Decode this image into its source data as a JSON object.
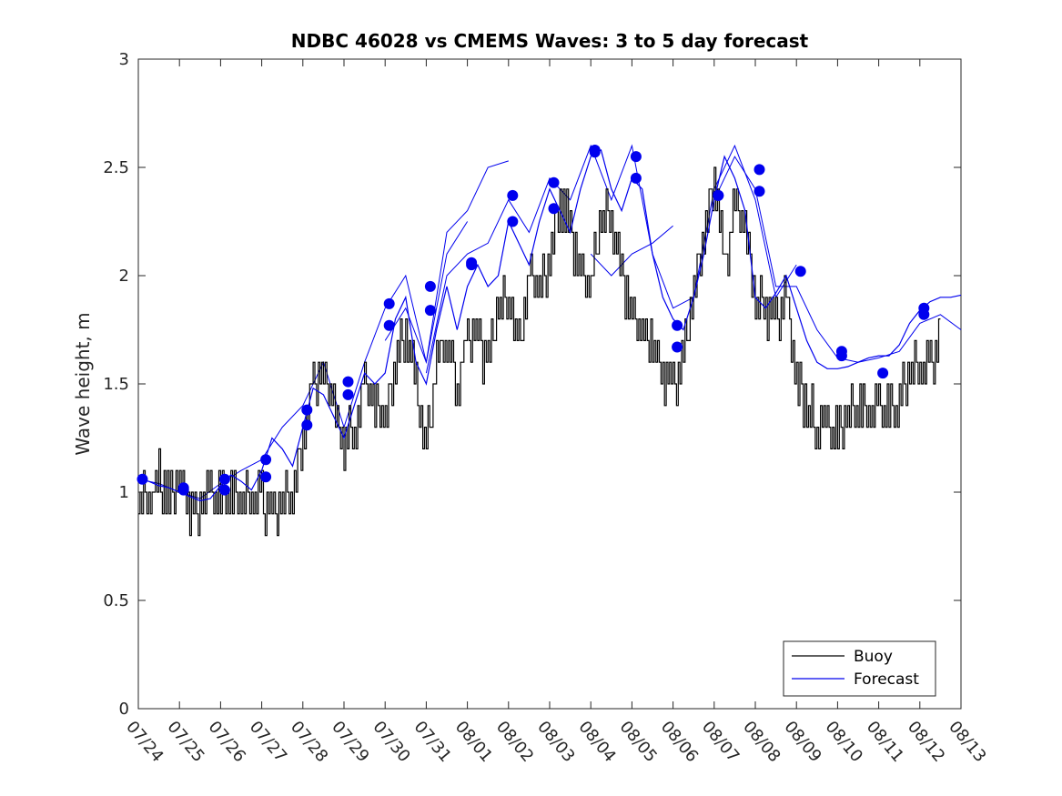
{
  "chart_data": {
    "type": "line",
    "title": "NDBC 46028 vs CMEMS Waves: 3 to 5 day forecast",
    "xlabel": "",
    "ylabel": "Wave height, m",
    "xlim": [
      "07/24",
      "08/13"
    ],
    "ylim": [
      0,
      3
    ],
    "yticks": [
      "0",
      "0.5",
      "1",
      "1.5",
      "2",
      "2.5",
      "3"
    ],
    "xticks": [
      "07/24",
      "07/25",
      "07/26",
      "07/27",
      "07/28",
      "07/29",
      "07/30",
      "07/31",
      "08/01",
      "08/02",
      "08/03",
      "08/04",
      "08/05",
      "08/06",
      "08/07",
      "08/08",
      "08/09",
      "08/10",
      "08/11",
      "08/12",
      "08/13"
    ],
    "grid": false,
    "legend_position": "bottom-right",
    "colors": {
      "buoy": "#000000",
      "forecast": "#0000ee"
    },
    "series": [
      {
        "name": "Buoy",
        "x": [
          0.0,
          0.25,
          0.5,
          0.75,
          1.0,
          1.25,
          1.5,
          1.75,
          2.0,
          2.25,
          2.5,
          2.75,
          3.0,
          3.25,
          3.5,
          3.75,
          4.0,
          4.25,
          4.5,
          4.75,
          5.0,
          5.25,
          5.5,
          5.75,
          6.0,
          6.25,
          6.5,
          6.75,
          7.0,
          7.25,
          7.5,
          7.75,
          8.0,
          8.25,
          8.5,
          8.75,
          9.0,
          9.25,
          9.5,
          9.75,
          10.0,
          10.25,
          10.5,
          10.75,
          11.0,
          11.25,
          11.5,
          11.75,
          12.0,
          12.25,
          12.5,
          12.75,
          13.0,
          13.25,
          13.5,
          13.75,
          14.0,
          14.25,
          14.5,
          14.75,
          15.0,
          15.25,
          15.5,
          15.75,
          16.0,
          16.25,
          16.5,
          16.75,
          17.0,
          17.25,
          17.5,
          17.75,
          18.0,
          18.25,
          18.5,
          18.75,
          19.0,
          19.25,
          19.5
        ],
        "y": [
          1.0,
          0.95,
          1.05,
          0.95,
          1.05,
          0.9,
          0.95,
          1.0,
          0.95,
          1.0,
          0.95,
          0.95,
          0.95,
          0.9,
          0.95,
          0.95,
          1.3,
          1.5,
          1.55,
          1.4,
          1.2,
          1.3,
          1.5,
          1.4,
          1.3,
          1.6,
          1.75,
          1.45,
          1.2,
          1.6,
          1.7,
          1.5,
          1.7,
          1.7,
          1.6,
          1.85,
          1.9,
          1.65,
          2.0,
          1.95,
          2.1,
          2.35,
          2.2,
          2.0,
          1.95,
          2.3,
          2.25,
          2.0,
          1.8,
          1.75,
          1.7,
          1.55,
          1.45,
          1.6,
          1.9,
          2.2,
          2.45,
          2.0,
          2.35,
          2.2,
          1.9,
          1.85,
          1.75,
          1.9,
          1.5,
          1.4,
          1.3,
          1.3,
          1.25,
          1.35,
          1.4,
          1.4,
          1.35,
          1.35,
          1.4,
          1.55,
          1.6,
          1.55,
          1.7
        ]
      },
      {
        "name": "Forecast",
        "x": [
          0.0,
          0.25,
          0.5,
          0.75,
          1.0,
          1.25,
          1.5,
          1.75,
          2.0,
          2.25,
          2.5,
          2.75,
          3.0,
          3.25,
          3.5,
          3.75,
          4.0,
          4.25,
          4.5,
          4.75,
          5.0,
          5.25,
          5.5,
          5.75,
          6.0,
          6.25,
          6.5,
          6.75,
          7.0,
          7.25,
          7.5,
          7.75,
          8.0,
          8.25,
          8.5,
          8.75,
          9.0,
          9.25,
          9.5,
          9.75,
          10.0,
          10.25,
          10.5,
          10.75,
          11.0,
          11.25,
          11.5,
          11.75,
          12.0,
          12.25,
          12.5,
          12.75,
          13.0,
          13.25,
          13.5,
          13.75,
          14.0,
          14.25,
          14.5,
          14.75,
          15.0,
          15.25,
          15.5,
          15.75,
          16.0,
          16.25,
          16.5,
          16.75,
          17.0,
          17.25,
          17.5,
          17.75,
          18.0,
          18.25,
          18.5,
          18.75,
          19.0,
          19.25,
          19.5,
          19.75,
          20.0
        ],
        "y": [
          1.06,
          1.05,
          1.03,
          1.02,
          1.0,
          0.98,
          0.96,
          0.97,
          1.03,
          1.08,
          1.05,
          1.01,
          1.1,
          1.25,
          1.2,
          1.12,
          1.3,
          1.48,
          1.45,
          1.35,
          1.25,
          1.4,
          1.55,
          1.5,
          1.55,
          1.8,
          1.9,
          1.6,
          1.5,
          1.75,
          1.95,
          1.75,
          1.95,
          2.05,
          1.95,
          2.0,
          2.25,
          2.15,
          2.05,
          2.25,
          2.4,
          2.3,
          2.2,
          2.4,
          2.55,
          2.58,
          2.4,
          2.3,
          2.45,
          2.4,
          2.1,
          1.9,
          1.8,
          1.75,
          1.9,
          2.1,
          2.35,
          2.55,
          2.45,
          2.3,
          1.9,
          1.85,
          1.92,
          2.0,
          1.85,
          1.7,
          1.6,
          1.57,
          1.57,
          1.58,
          1.6,
          1.62,
          1.63,
          1.63,
          1.68,
          1.78,
          1.84,
          1.88,
          1.9,
          1.9,
          1.91
        ]
      }
    ],
    "forecast_ensemble_variants": [
      {
        "x": [
          0.0,
          0.5,
          1.0,
          1.5,
          2.0,
          2.5,
          3.0,
          3.5,
          4.0,
          4.5,
          5.0,
          5.5,
          6.0,
          6.5,
          7.0,
          7.5,
          8.0
        ],
        "y": [
          1.06,
          1.04,
          1.0,
          0.97,
          1.04,
          1.1,
          1.15,
          1.3,
          1.4,
          1.6,
          1.3,
          1.6,
          1.85,
          2.0,
          1.6,
          2.1,
          2.25
        ]
      },
      {
        "x": [
          7.0,
          7.5,
          8.0,
          8.5,
          9.0,
          9.5,
          10.0,
          10.5,
          11.0,
          11.5,
          12.0,
          12.5,
          13.0,
          13.5,
          14.0,
          14.5,
          15.0,
          15.5,
          16.0
        ],
        "y": [
          1.55,
          2.0,
          2.1,
          2.15,
          2.35,
          2.2,
          2.45,
          2.35,
          2.6,
          2.35,
          2.6,
          2.1,
          1.85,
          1.9,
          2.4,
          2.6,
          2.35,
          1.9,
          2.05
        ]
      },
      {
        "x": [
          14.0,
          14.5,
          15.0,
          15.5,
          16.0,
          16.5,
          17.0,
          17.5,
          18.0,
          18.5,
          19.0,
          19.5,
          20.0
        ],
        "y": [
          2.35,
          2.55,
          2.4,
          1.95,
          1.95,
          1.75,
          1.62,
          1.6,
          1.62,
          1.65,
          1.78,
          1.82,
          1.75
        ]
      },
      {
        "x": [
          6.0,
          6.5,
          7.0,
          7.5,
          8.0,
          8.5,
          9.0
        ],
        "y": [
          1.7,
          1.85,
          1.6,
          2.2,
          2.3,
          2.5,
          2.53
        ]
      },
      {
        "x": [
          11.0,
          11.5,
          12.0,
          12.5,
          13.0
        ],
        "y": [
          2.1,
          2.0,
          2.1,
          2.15,
          2.23
        ]
      }
    ],
    "forecast_init_points": {
      "x": [
        0.1,
        1.1,
        1.1,
        2.1,
        2.1,
        3.1,
        3.1,
        4.1,
        4.1,
        5.1,
        5.1,
        6.1,
        6.1,
        7.1,
        7.1,
        8.1,
        8.1,
        9.1,
        9.1,
        10.1,
        10.1,
        11.1,
        11.1,
        12.1,
        12.1,
        13.1,
        13.1,
        14.1,
        14.1,
        15.1,
        15.1,
        16.1,
        17.1,
        17.1,
        18.1,
        19.1,
        19.1
      ],
      "y": [
        1.06,
        1.01,
        1.02,
        1.06,
        1.01,
        1.15,
        1.07,
        1.38,
        1.31,
        1.51,
        1.45,
        1.87,
        1.77,
        1.95,
        1.84,
        2.05,
        2.06,
        2.37,
        2.25,
        2.43,
        2.31,
        2.58,
        2.57,
        2.55,
        2.45,
        1.77,
        1.67,
        2.37,
        2.37,
        2.49,
        2.39,
        2.02,
        1.65,
        1.63,
        1.55,
        1.85,
        1.82
      ]
    }
  }
}
